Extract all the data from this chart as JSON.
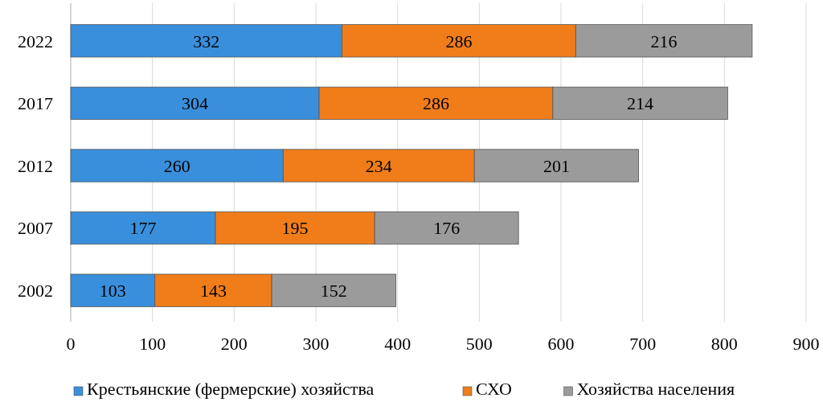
{
  "chart_data": {
    "type": "bar",
    "orientation": "horizontal",
    "stacked": true,
    "categories": [
      "2022",
      "2017",
      "2012",
      "2007",
      "2002"
    ],
    "series": [
      {
        "name": "Крестьянские (фермерские) хозяйства",
        "color": "#3a8fdc",
        "values": [
          332,
          304,
          260,
          177,
          103
        ]
      },
      {
        "name": "СХО",
        "color": "#f07d1a",
        "values": [
          286,
          286,
          234,
          195,
          143
        ]
      },
      {
        "name": "Хозяйства населения",
        "color": "#9b9b9b",
        "values": [
          216,
          214,
          201,
          176,
          152
        ]
      }
    ],
    "xlim": [
      0,
      900
    ],
    "xticks": [
      0,
      100,
      200,
      300,
      400,
      500,
      600,
      700,
      800,
      900
    ],
    "grid": "x",
    "legend": "bottom",
    "data_labels": true
  }
}
